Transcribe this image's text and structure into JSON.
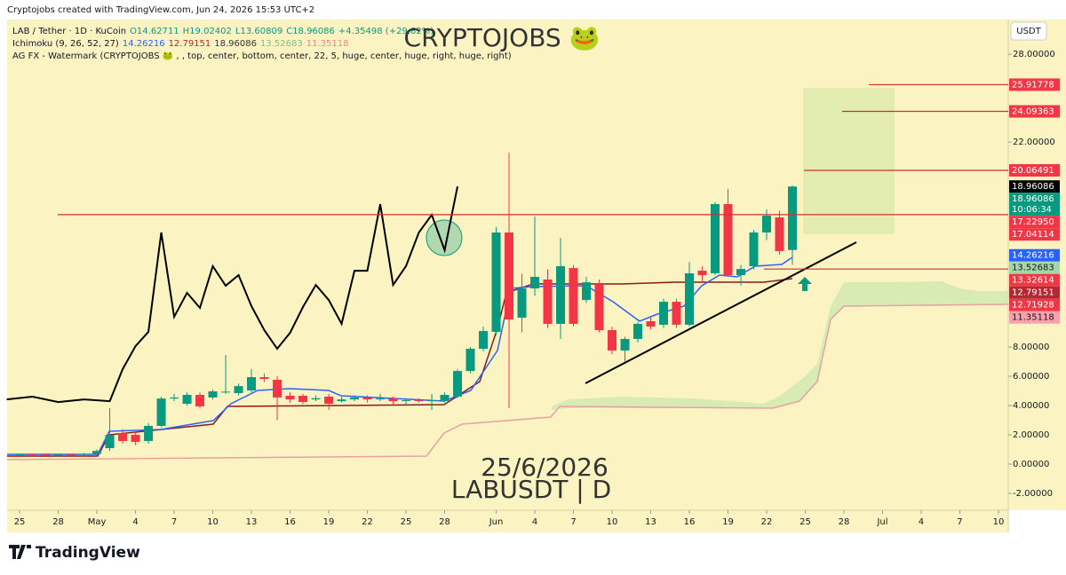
{
  "header": {
    "credit": "Cryptojobs created with TradingView.com, Jun 24, 2026 15:53 UTC+2",
    "symbol": "LAB / Tether · 1D · KuCoin",
    "ohlc": [
      "O14.62711",
      "H19.02402",
      "L13.60809",
      "C18.96086",
      "+4.35498 (+29.82%)"
    ],
    "ichimoku": "Ichimoku (9, 26, 52, 27)",
    "ichimoku_values": [
      "14.26216",
      "12.79151",
      "18.96086",
      "13.52683",
      "11.35118"
    ],
    "watermark_line": "AG FX - Watermark (CRYPTOJOBS 🐸 , , top, center, bottom, center, 22, 5, huge, center, huge, right, huge, right)",
    "currency": "USDT",
    "brand": "TradingView"
  },
  "watermark": {
    "title": "CRYPTOJOBS 🐸",
    "date": "25/6/2026",
    "pair": "LABUSDT | D"
  },
  "chart_data": {
    "type": "candlestick",
    "xlim": [
      -0.97,
      76.76
    ],
    "ylim": [
      -3.15,
      30.61
    ],
    "xticks": [
      {
        "value": 0,
        "label": "25"
      },
      {
        "value": 3,
        "label": "28"
      },
      {
        "value": 6,
        "label": "May"
      },
      {
        "value": 9,
        "label": "4"
      },
      {
        "value": 12,
        "label": "7"
      },
      {
        "value": 15,
        "label": "10"
      },
      {
        "value": 18,
        "label": "13"
      },
      {
        "value": 21,
        "label": "16"
      },
      {
        "value": 24,
        "label": "19"
      },
      {
        "value": 27,
        "label": "22"
      },
      {
        "value": 30,
        "label": "25"
      },
      {
        "value": 33,
        "label": "28"
      },
      {
        "value": 37,
        "label": "Jun"
      },
      {
        "value": 40,
        "label": "4"
      },
      {
        "value": 43,
        "label": "7"
      },
      {
        "value": 46,
        "label": "10"
      },
      {
        "value": 49,
        "label": "13"
      },
      {
        "value": 52,
        "label": "16"
      },
      {
        "value": 55,
        "label": "19"
      },
      {
        "value": 58,
        "label": "22"
      },
      {
        "value": 61,
        "label": "25"
      },
      {
        "value": 64,
        "label": "28"
      },
      {
        "value": 67,
        "label": "Jul"
      },
      {
        "value": 70,
        "label": "4"
      },
      {
        "value": 73,
        "label": "7"
      },
      {
        "value": 76,
        "label": "10"
      }
    ],
    "yticks": [
      {
        "value": 28,
        "label": "28.00000"
      },
      {
        "value": 22,
        "label": "22.00000"
      },
      {
        "value": 8,
        "label": "8.00000"
      },
      {
        "value": 6,
        "label": "6.00000"
      },
      {
        "value": 4,
        "label": "4.00000"
      },
      {
        "value": 2,
        "label": "2.00000"
      },
      {
        "value": 0,
        "label": "0.00000"
      },
      {
        "value": -2,
        "label": "-2.00000"
      }
    ],
    "up_color": "#089981",
    "down_color": "#f23645",
    "x": [
      0,
      1,
      2,
      3,
      4,
      5,
      6,
      7,
      8,
      9,
      10,
      11,
      12,
      13,
      14,
      15,
      16,
      17,
      18,
      19,
      20,
      21,
      22,
      23,
      24,
      25,
      26,
      27,
      28,
      29,
      30,
      31,
      32,
      33,
      34,
      35,
      36,
      37,
      38,
      39,
      40,
      41,
      42,
      43,
      44,
      45,
      46,
      47,
      48,
      49,
      50,
      51,
      52,
      53,
      54,
      55,
      56,
      57,
      58,
      59,
      60
    ],
    "open": [
      0.65,
      0.67,
      0.66,
      0.64,
      0.66,
      0.65,
      0.7,
      1.09,
      2.12,
      2.0,
      1.58,
      2.61,
      4.48,
      4.12,
      4.73,
      4.55,
      4.91,
      4.85,
      5.03,
      5.94,
      5.76,
      4.67,
      4.67,
      4.42,
      4.61,
      4.3,
      4.42,
      4.55,
      4.42,
      4.48,
      4.3,
      4.36,
      4.3,
      4.3,
      4.61,
      6.36,
      7.88,
      9.03,
      15.82,
      10.0,
      12.0,
      12.61,
      9.58,
      13.39,
      11.21,
      12.3,
      9.15,
      7.76,
      8.55,
      9.76,
      9.52,
      11.09,
      9.52,
      13.21,
      13.03,
      17.76,
      12.91,
      13.52,
      15.82,
      16.85,
      14.62711
    ],
    "high": [
      0.7,
      0.72,
      0.7,
      0.7,
      0.72,
      0.75,
      1.0,
      3.82,
      2.4,
      2.2,
      2.8,
      4.6,
      4.8,
      4.9,
      4.9,
      5.1,
      7.45,
      5.5,
      6.5,
      6.2,
      6.0,
      4.9,
      4.8,
      4.7,
      4.8,
      4.6,
      4.7,
      4.7,
      4.8,
      4.6,
      4.5,
      4.5,
      4.8,
      4.9,
      6.5,
      8.0,
      9.4,
      16.2,
      21.27,
      13.0,
      16.91,
      13.3,
      15.45,
      13.6,
      12.8,
      12.6,
      9.4,
      8.7,
      9.7,
      10.0,
      11.3,
      11.3,
      13.8,
      13.5,
      17.9,
      18.8,
      13.6,
      16.0,
      17.4,
      17.3,
      19.02402
    ],
    "low": [
      0.6,
      0.62,
      0.6,
      0.6,
      0.62,
      0.6,
      0.6,
      0.9,
      1.4,
      1.3,
      1.4,
      2.5,
      4.3,
      4.0,
      3.8,
      4.4,
      4.8,
      4.7,
      4.9,
      5.6,
      3.0,
      4.2,
      4.1,
      4.3,
      3.7,
      4.2,
      4.3,
      4.2,
      4.3,
      4.1,
      4.1,
      4.2,
      3.7,
      4.2,
      4.5,
      6.2,
      7.7,
      8.8,
      3.82,
      9.0,
      11.5,
      9.3,
      8.55,
      9.4,
      11.0,
      9.0,
      7.5,
      7.0,
      8.3,
      9.2,
      9.3,
      9.3,
      9.4,
      12.5,
      12.9,
      12.8,
      12.2,
      13.3,
      15.3,
      14.3,
      13.60809
    ],
    "close": [
      0.67,
      0.66,
      0.64,
      0.66,
      0.65,
      0.7,
      0.9,
      2.0,
      1.58,
      1.52,
      2.61,
      4.48,
      4.55,
      4.73,
      3.94,
      4.97,
      4.95,
      5.33,
      5.94,
      5.82,
      4.55,
      4.42,
      4.24,
      4.5,
      4.12,
      4.42,
      4.55,
      4.42,
      4.48,
      4.3,
      4.36,
      4.3,
      4.36,
      4.73,
      6.36,
      7.88,
      9.09,
      15.82,
      9.88,
      12.0,
      12.79,
      9.58,
      13.52,
      9.58,
      12.42,
      9.15,
      7.76,
      8.55,
      9.58,
      9.39,
      11.09,
      9.52,
      13.03,
      12.91,
      17.76,
      12.91,
      13.33,
      15.82,
      16.97,
      14.55,
      18.96086
    ],
    "overlay": {
      "color": "#000000",
      "x": [
        -1,
        1,
        3,
        5,
        7,
        8,
        9,
        10,
        11,
        12,
        13,
        14,
        15,
        16,
        17,
        18,
        19,
        20,
        21,
        22,
        23,
        24,
        25,
        26,
        27,
        28,
        29,
        30,
        31,
        32,
        33,
        34
      ],
      "values": [
        4.42,
        4.61,
        4.24,
        4.42,
        4.3,
        6.48,
        8.06,
        9.03,
        15.82,
        10.06,
        11.7,
        10.67,
        13.52,
        12.18,
        12.91,
        10.79,
        9.15,
        7.88,
        8.97,
        10.73,
        12.24,
        11.21,
        9.58,
        13.21,
        13.21,
        17.76,
        12.24,
        13.52,
        15.82,
        17.03,
        14.61,
        18.97
      ]
    },
    "price_labels": [
      {
        "value": 25.91778,
        "label": "25.91778",
        "color": "#f23645"
      },
      {
        "value": 24.09363,
        "label": "24.09363",
        "color": "#f23645"
      },
      {
        "value": 20.06491,
        "label": "20.06491",
        "color": "#f23645"
      },
      {
        "value": 18.96086,
        "label": "18.96086",
        "color": "#000000"
      },
      {
        "value": 18.96086,
        "label": "18.96086",
        "countdown": "10:06:34",
        "color": "#089981"
      },
      {
        "value": 17.2295,
        "label": "17.22950",
        "color": "#f23645"
      },
      {
        "value": 17.04114,
        "label": "17.04114",
        "color": "#f23645"
      },
      {
        "value": 14.26216,
        "label": "14.26216",
        "color": "#2962ff"
      },
      {
        "value": 13.52683,
        "label": "13.52683",
        "color": "#a5d6a7"
      },
      {
        "value": 13.32614,
        "label": "13.32614",
        "color": "#f23645"
      },
      {
        "value": 12.79151,
        "label": "12.79151",
        "color": "#b22833"
      },
      {
        "value": 12.71928,
        "label": "12.71928",
        "color": "#f23645"
      },
      {
        "value": 11.35118,
        "label": "11.35118",
        "color": "#f7a1a9"
      }
    ]
  }
}
